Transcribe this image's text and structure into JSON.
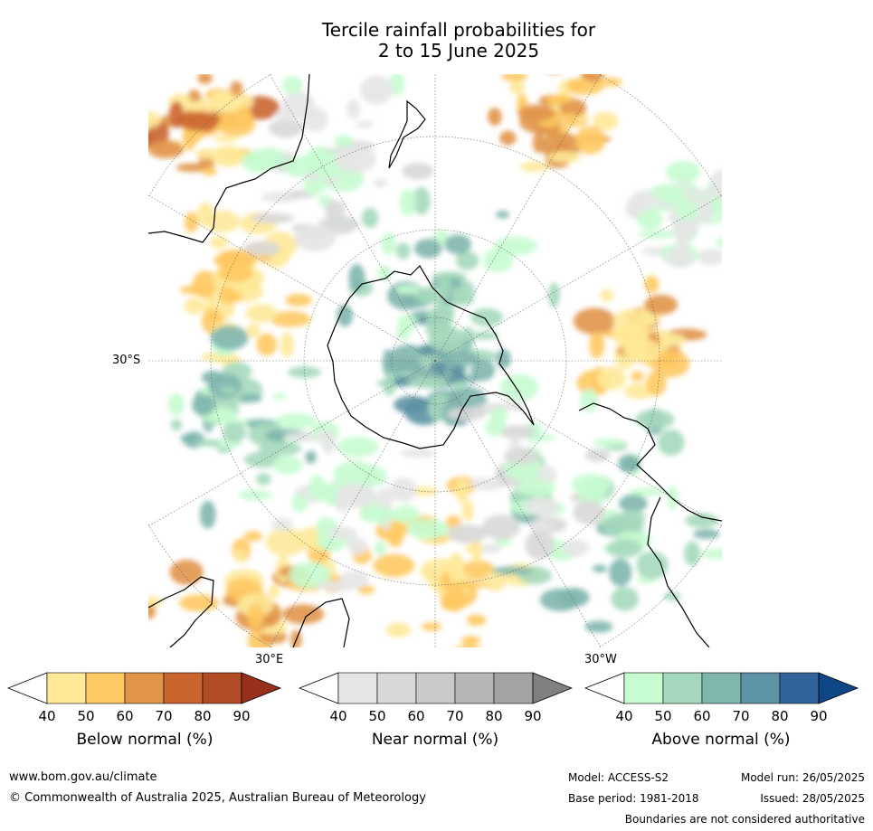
{
  "title_line1": "Tercile rainfall probabilities for",
  "title_line2": "2 to 15 June 2025",
  "map": {
    "lat_label": "30°S",
    "lon_label_east": "30°E",
    "lon_label_west": "30°W"
  },
  "colorbars": [
    {
      "title": "Below normal (%)",
      "ticks": [
        "40",
        "50",
        "60",
        "70",
        "80",
        "90"
      ],
      "colors": [
        "#ffffff",
        "#fee999",
        "#fec962",
        "#e1954b",
        "#cb6530",
        "#b24c25",
        "#982f1b"
      ]
    },
    {
      "title": "Near normal (%)",
      "ticks": [
        "40",
        "50",
        "60",
        "70",
        "80",
        "90"
      ],
      "colors": [
        "#ffffff",
        "#e5e5e5",
        "#d8d8d8",
        "#c9c9c9",
        "#b6b6b6",
        "#a3a3a3",
        "#808080"
      ]
    },
    {
      "title": "Above normal (%)",
      "ticks": [
        "40",
        "50",
        "60",
        "70",
        "80",
        "90"
      ],
      "colors": [
        "#ffffff",
        "#c7fcd0",
        "#a5d9bd",
        "#7fb6ae",
        "#5d93a4",
        "#32639a",
        "#0f4786"
      ]
    }
  ],
  "footer": {
    "website": "www.bom.gov.au/climate",
    "copyright": "© Commonwealth of Australia 2025, Australian Bureau of Meteorology",
    "model": "Model: ACCESS-S2",
    "base_period": "Base period: 1981-2018",
    "model_run": "Model run: 26/05/2025",
    "issued": "Issued: 28/05/2025",
    "disclaimer": "Boundaries are not considered authoritative"
  },
  "colors": {
    "below_normal_accent": "#e1954b",
    "near_normal_accent": "#c9c9c9",
    "above_normal_accent": "#a5d9bd"
  }
}
